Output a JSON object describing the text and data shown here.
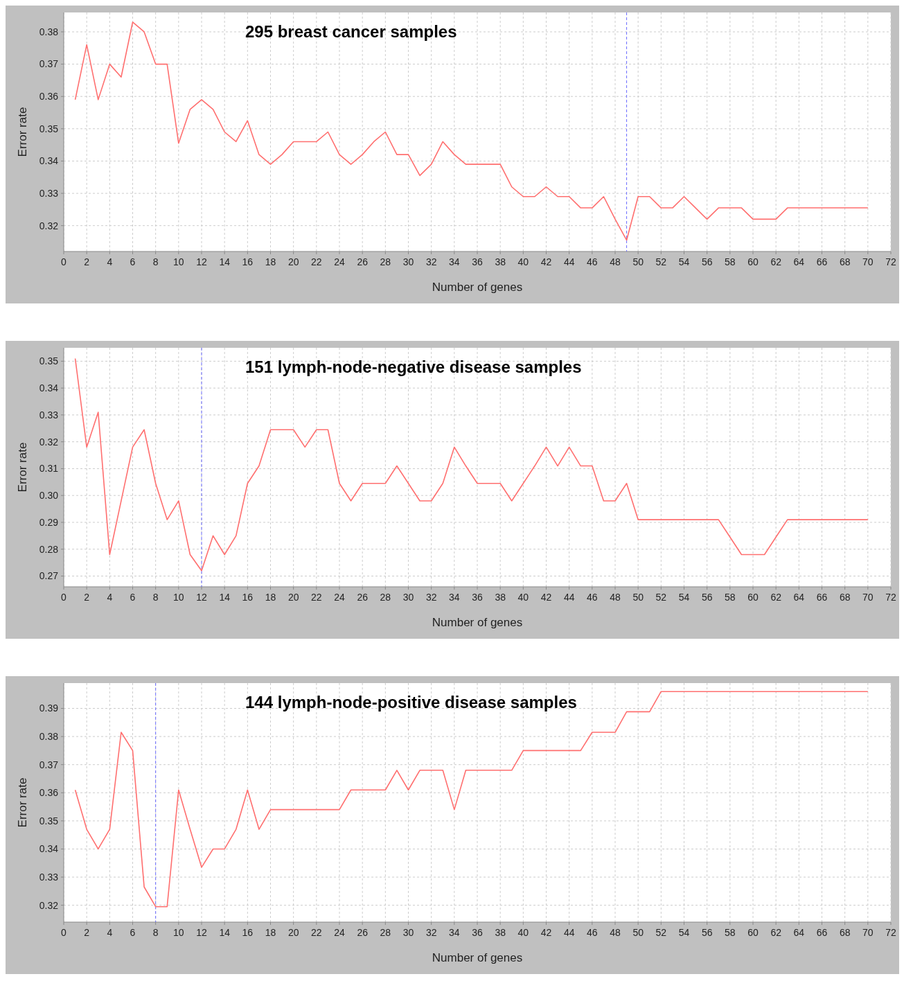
{
  "chart_data": [
    {
      "type": "line",
      "title": "295 breast cancer samples",
      "xlabel": "Number of genes",
      "ylabel": "Error rate",
      "xlim": [
        0,
        72
      ],
      "xticks": [
        0,
        2,
        4,
        6,
        8,
        10,
        12,
        14,
        16,
        18,
        20,
        22,
        24,
        26,
        28,
        30,
        32,
        34,
        36,
        38,
        40,
        42,
        44,
        46,
        48,
        50,
        52,
        54,
        56,
        58,
        60,
        62,
        64,
        66,
        68,
        70,
        72
      ],
      "ylim": [
        0.312,
        0.386
      ],
      "yticks": [
        0.32,
        0.33,
        0.34,
        0.35,
        0.36,
        0.37,
        0.38
      ],
      "grid": true,
      "marker": "none",
      "line_style": "solid",
      "ref_lines": [
        {
          "axis": "x",
          "value": 49,
          "color": "#6b6bff",
          "line_style": "dashed"
        }
      ],
      "x": [
        1,
        2,
        3,
        4,
        5,
        6,
        7,
        8,
        9,
        10,
        11,
        12,
        13,
        14,
        15,
        16,
        17,
        18,
        19,
        20,
        21,
        22,
        23,
        24,
        25,
        26,
        27,
        28,
        29,
        30,
        31,
        32,
        33,
        34,
        35,
        36,
        37,
        38,
        39,
        40,
        41,
        42,
        43,
        44,
        45,
        46,
        47,
        48,
        49,
        50,
        51,
        52,
        53,
        54,
        55,
        56,
        57,
        58,
        59,
        60,
        61,
        62,
        63,
        64,
        65,
        66,
        67,
        68,
        69,
        70
      ],
      "series": [
        {
          "color": "#ff6f6f",
          "values": [
            0.359,
            0.376,
            0.359,
            0.37,
            0.366,
            0.383,
            0.38,
            0.37,
            0.37,
            0.3455,
            0.356,
            0.359,
            0.356,
            0.349,
            0.346,
            0.3525,
            0.342,
            0.339,
            0.342,
            0.346,
            0.346,
            0.346,
            0.349,
            0.342,
            0.339,
            0.342,
            0.346,
            0.349,
            0.342,
            0.342,
            0.3355,
            0.339,
            0.346,
            0.342,
            0.339,
            0.339,
            0.339,
            0.339,
            0.332,
            0.329,
            0.329,
            0.332,
            0.329,
            0.329,
            0.3255,
            0.3255,
            0.329,
            0.322,
            0.3155,
            0.329,
            0.329,
            0.3255,
            0.3255,
            0.329,
            0.3255,
            0.322,
            0.3255,
            0.3255,
            0.3255,
            0.322,
            0.322,
            0.322,
            0.3255,
            0.3255,
            0.3255,
            0.3255,
            0.3255,
            0.3255,
            0.3255,
            0.3255
          ]
        }
      ]
    },
    {
      "type": "line",
      "title": "151 lymph-node-negative disease samples",
      "xlabel": "Number of genes",
      "ylabel": "Error rate",
      "xlim": [
        0,
        72
      ],
      "xticks": [
        0,
        2,
        4,
        6,
        8,
        10,
        12,
        14,
        16,
        18,
        20,
        22,
        24,
        26,
        28,
        30,
        32,
        34,
        36,
        38,
        40,
        42,
        44,
        46,
        48,
        50,
        52,
        54,
        56,
        58,
        60,
        62,
        64,
        66,
        68,
        70,
        72
      ],
      "ylim": [
        0.266,
        0.355
      ],
      "yticks": [
        0.27,
        0.28,
        0.29,
        {
          "value": 0.3,
          "label": "0.30"
        },
        0.31,
        0.32,
        0.33,
        0.34,
        0.35
      ],
      "grid": true,
      "marker": "none",
      "line_style": "solid",
      "ref_lines": [
        {
          "axis": "x",
          "value": 12,
          "color": "#6b6bff",
          "line_style": "dashed"
        }
      ],
      "x": [
        1,
        2,
        3,
        4,
        5,
        6,
        7,
        8,
        9,
        10,
        11,
        12,
        13,
        14,
        15,
        16,
        17,
        18,
        19,
        20,
        21,
        22,
        23,
        24,
        25,
        26,
        27,
        28,
        29,
        30,
        31,
        32,
        33,
        34,
        35,
        36,
        37,
        38,
        39,
        40,
        41,
        42,
        43,
        44,
        45,
        46,
        47,
        48,
        49,
        50,
        51,
        52,
        53,
        54,
        55,
        56,
        57,
        58,
        59,
        60,
        61,
        62,
        63,
        64,
        65,
        66,
        67,
        68,
        69,
        70
      ],
      "series": [
        {
          "color": "#ff6f6f",
          "values": [
            0.351,
            0.318,
            0.331,
            0.278,
            0.298,
            0.318,
            0.3245,
            0.3045,
            0.291,
            0.298,
            0.278,
            0.272,
            0.285,
            0.278,
            0.285,
            0.3045,
            0.311,
            0.3245,
            0.3245,
            0.3245,
            0.318,
            0.3245,
            0.3245,
            0.3045,
            0.298,
            0.3045,
            0.3045,
            0.3045,
            0.311,
            0.3045,
            0.298,
            0.298,
            0.3045,
            0.318,
            0.311,
            0.3045,
            0.3045,
            0.3045,
            0.298,
            0.3045,
            0.311,
            0.318,
            0.311,
            0.318,
            0.311,
            0.311,
            0.298,
            0.298,
            0.3045,
            0.291,
            0.291,
            0.291,
            0.291,
            0.291,
            0.291,
            0.291,
            0.291,
            0.2845,
            0.278,
            0.278,
            0.278,
            0.2845,
            0.291,
            0.291,
            0.291,
            0.291,
            0.291,
            0.291,
            0.291,
            0.291
          ]
        }
      ]
    },
    {
      "type": "line",
      "title": "144 lymph-node-positive disease samples",
      "xlabel": "Number of genes",
      "ylabel": "Error rate",
      "xlim": [
        0,
        72
      ],
      "xticks": [
        0,
        2,
        4,
        6,
        8,
        10,
        12,
        14,
        16,
        18,
        20,
        22,
        24,
        26,
        28,
        30,
        32,
        34,
        36,
        38,
        40,
        42,
        44,
        46,
        48,
        50,
        52,
        54,
        56,
        58,
        60,
        62,
        64,
        66,
        68,
        70,
        72
      ],
      "ylim": [
        0.314,
        0.399
      ],
      "yticks": [
        0.32,
        0.33,
        0.34,
        0.35,
        0.36,
        0.37,
        0.38,
        0.39
      ],
      "grid": true,
      "marker": "none",
      "line_style": "solid",
      "ref_lines": [
        {
          "axis": "x",
          "value": 8,
          "color": "#6b6bff",
          "line_style": "dashed"
        }
      ],
      "x": [
        1,
        2,
        3,
        4,
        5,
        6,
        7,
        8,
        9,
        10,
        11,
        12,
        13,
        14,
        15,
        16,
        17,
        18,
        19,
        20,
        21,
        22,
        23,
        24,
        25,
        26,
        27,
        28,
        29,
        30,
        31,
        32,
        33,
        34,
        35,
        36,
        37,
        38,
        39,
        40,
        41,
        42,
        43,
        44,
        45,
        46,
        47,
        48,
        49,
        50,
        51,
        52,
        53,
        54,
        55,
        56,
        57,
        58,
        59,
        60,
        61,
        62,
        63,
        64,
        65,
        66,
        67,
        68,
        69,
        70
      ],
      "series": [
        {
          "color": "#ff6f6f",
          "values": [
            0.361,
            0.347,
            0.34,
            0.347,
            0.3815,
            0.375,
            0.3265,
            0.3195,
            0.3195,
            0.361,
            0.347,
            0.3335,
            0.34,
            0.34,
            0.347,
            0.361,
            0.347,
            0.354,
            0.354,
            0.354,
            0.354,
            0.354,
            0.354,
            0.354,
            0.361,
            0.361,
            0.361,
            0.361,
            0.368,
            0.361,
            0.368,
            0.368,
            0.368,
            0.354,
            0.368,
            0.368,
            0.368,
            0.368,
            0.368,
            0.375,
            0.375,
            0.375,
            0.375,
            0.375,
            0.375,
            0.3815,
            0.3815,
            0.3815,
            0.3888,
            0.3888,
            0.3888,
            0.396,
            0.396,
            0.396,
            0.396,
            0.396,
            0.396,
            0.396,
            0.396,
            0.396,
            0.396,
            0.396,
            0.396,
            0.396,
            0.396,
            0.396,
            0.396,
            0.396,
            0.396,
            0.396
          ]
        }
      ]
    }
  ]
}
